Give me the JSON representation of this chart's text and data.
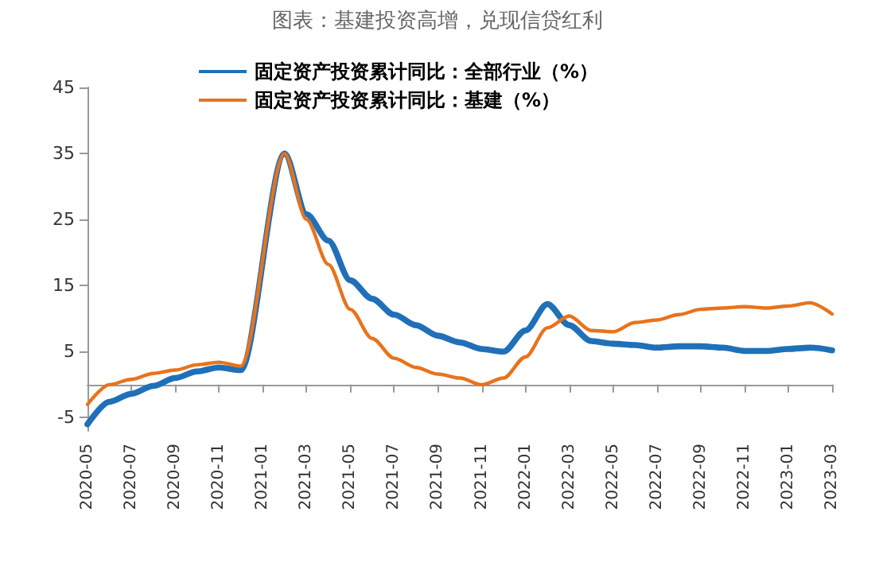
{
  "chart_data": {
    "type": "line",
    "title": "图表：基建投资高增，兑现信贷红利",
    "categories": [
      "2020-05",
      null,
      "2020-07",
      null,
      "2020-09",
      null,
      "2020-11",
      null,
      "2021-01",
      null,
      "2021-03",
      null,
      "2021-05",
      null,
      "2021-07",
      null,
      "2021-09",
      null,
      "2021-11",
      null,
      "2022-01",
      null,
      "2022-03",
      null,
      "2022-05",
      null,
      "2022-07",
      null,
      "2022-09",
      null,
      "2022-11",
      null,
      "2023-01",
      null,
      "2023-03"
    ],
    "series": [
      {
        "name": "固定资产投资累计同比：全部行业（%）",
        "color": "#1f70b8",
        "values": [
          -6.0,
          -2.6,
          -1.4,
          -0.2,
          1.0,
          2.0,
          2.6,
          2.2,
          null,
          35.0,
          25.8,
          21.8,
          15.8,
          13.0,
          10.6,
          9.0,
          7.4,
          6.4,
          5.4,
          5.0,
          8.2,
          12.2,
          9.0,
          6.6,
          6.2,
          6.0,
          5.6,
          5.8,
          5.8,
          5.6,
          5.1,
          5.1,
          5.4,
          5.6,
          5.2
        ]
      },
      {
        "name": "固定资产投资累计同比：基建（%）",
        "color": "#e8731c",
        "values": [
          -3.0,
          0.0,
          0.8,
          1.7,
          2.2,
          3.0,
          3.4,
          2.8,
          null,
          35.0,
          25.0,
          18.2,
          11.4,
          7.0,
          4.0,
          2.6,
          1.6,
          1.0,
          0.0,
          1.0,
          4.2,
          8.6,
          10.4,
          8.2,
          8.0,
          9.4,
          9.8,
          10.6,
          11.4,
          11.6,
          11.8,
          11.6,
          11.9,
          12.4,
          10.7
        ]
      }
    ],
    "ylim": [
      -7,
      45
    ],
    "yticks": [
      -5,
      5,
      15,
      25,
      35,
      45
    ],
    "grid": false,
    "legend": "top",
    "marker": "none",
    "line_style": "solid"
  }
}
